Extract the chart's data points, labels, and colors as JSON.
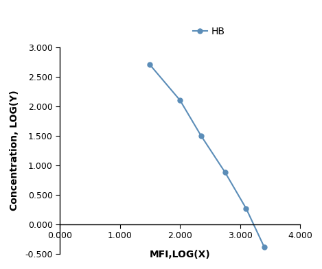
{
  "x": [
    1.5,
    2.0,
    2.35,
    2.75,
    3.1,
    3.4
  ],
  "y": [
    2.7,
    2.1,
    1.5,
    0.88,
    0.27,
    -0.38
  ],
  "line_color": "#5B8DB8",
  "marker": "o",
  "marker_size": 5,
  "legend_label": "HB",
  "xlabel": "MFI,LOG(X)",
  "ylabel": "Concentration, LOG(Y)",
  "xlim": [
    0.0,
    4.0
  ],
  "ylim": [
    -0.5,
    3.0
  ],
  "xticks": [
    0.0,
    1.0,
    2.0,
    3.0,
    4.0
  ],
  "yticks": [
    -0.5,
    0.0,
    0.5,
    1.0,
    1.5,
    2.0,
    2.5,
    3.0
  ],
  "axis_label_fontsize": 10,
  "tick_fontsize": 9,
  "legend_fontsize": 10
}
